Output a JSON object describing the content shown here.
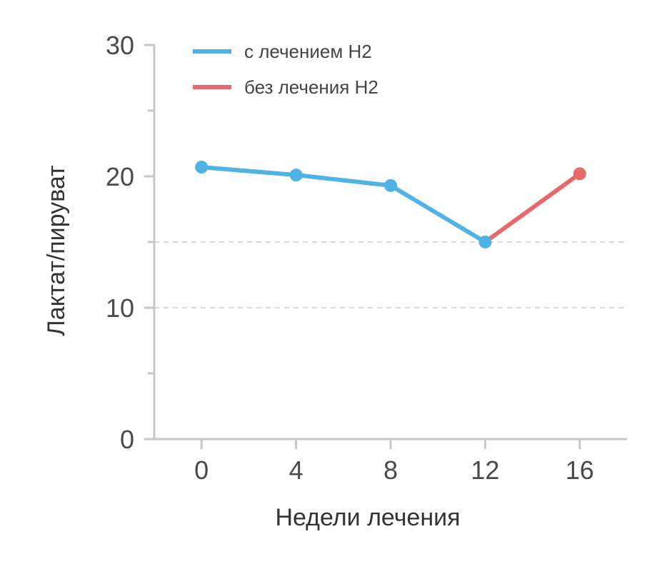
{
  "chart_data": {
    "type": "line",
    "title": "",
    "xlabel": "Недели лечения",
    "ylabel": "Лактат/пируват",
    "x_ticks": [
      0,
      4,
      8,
      12,
      16
    ],
    "y_ticks": [
      0,
      10,
      20,
      30
    ],
    "xlim": [
      -2,
      18
    ],
    "ylim": [
      0,
      30
    ],
    "reference_lines": [
      10,
      15
    ],
    "legend_position": "top-left",
    "grid": false,
    "series": [
      {
        "name": "с лечением H2",
        "color": "#4fb3e6",
        "points": [
          {
            "x": 0,
            "y": 20.7
          },
          {
            "x": 4,
            "y": 20.1
          },
          {
            "x": 8,
            "y": 19.3
          },
          {
            "x": 12,
            "y": 15.0
          }
        ]
      },
      {
        "name": "без лечения H2",
        "color": "#e8696b",
        "points": [
          {
            "x": 12,
            "y": 15.0
          },
          {
            "x": 16,
            "y": 20.2
          }
        ]
      }
    ]
  }
}
